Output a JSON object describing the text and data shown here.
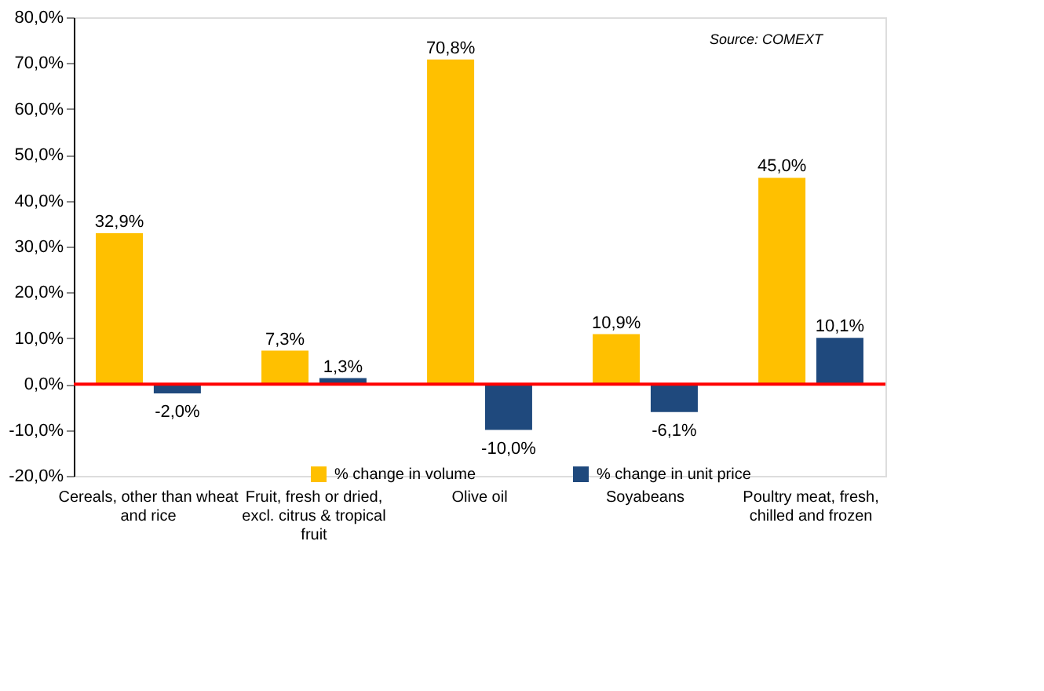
{
  "chart_data": {
    "type": "bar",
    "categories": [
      "Cereals, other than wheat and rice",
      "Fruit, fresh or dried, excl. citrus & tropical fruit",
      "Olive oil",
      "Soyabeans",
      "Poultry meat, fresh, chilled and frozen"
    ],
    "series": [
      {
        "name": "% change in volume",
        "color": "#ffc000",
        "values": [
          32.9,
          7.3,
          70.8,
          10.9,
          45.0
        ],
        "value_labels": [
          "32,9%",
          "7,3%",
          "70,8%",
          "10,9%",
          "45,0%"
        ]
      },
      {
        "name": "% change in unit price",
        "color": "#1f497d",
        "values": [
          -2.0,
          1.3,
          -10.0,
          -6.1,
          10.1
        ],
        "value_labels": [
          "-2,0%",
          "1,3%",
          "-10,0%",
          "-6,1%",
          "10,1%"
        ]
      }
    ],
    "ylim": [
      -20,
      80
    ],
    "yticks": [
      {
        "value": -20,
        "label": "-20,0%"
      },
      {
        "value": -10,
        "label": "-10,0%"
      },
      {
        "value": 0,
        "label": "0,0%"
      },
      {
        "value": 10,
        "label": "10,0%"
      },
      {
        "value": 20,
        "label": "20,0%"
      },
      {
        "value": 30,
        "label": "30,0%"
      },
      {
        "value": 40,
        "label": "40,0%"
      },
      {
        "value": 50,
        "label": "50,0%"
      },
      {
        "value": 60,
        "label": "60,0%"
      },
      {
        "value": 70,
        "label": "70,0%"
      },
      {
        "value": 80,
        "label": "80,0%"
      }
    ],
    "ref_lines": [
      {
        "axis": "y",
        "value": 0,
        "color": "#ff0000"
      }
    ],
    "annotations": [
      "Source: COMEXT"
    ],
    "grid": false,
    "legend": "bottom"
  }
}
